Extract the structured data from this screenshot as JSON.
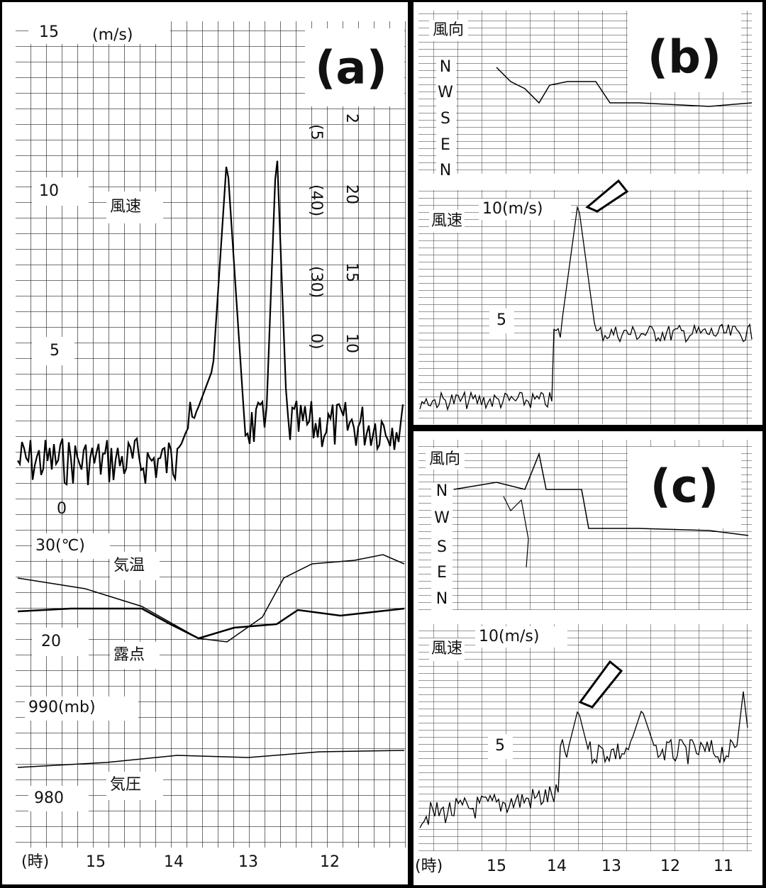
{
  "panel_a": {
    "label": "(a)",
    "wind_unit": "(m/s)",
    "wind_ticks": [
      "15",
      "10",
      "5",
      "0"
    ],
    "wind_title": "風速",
    "side_ticks": [
      "(5",
      "(40)",
      "(30)",
      "0)",
      "2",
      "20",
      "15",
      "10"
    ],
    "temp_ticks": [
      "30(℃)",
      "20"
    ],
    "temp_title": "気温",
    "dew_title": "露点",
    "pressure_ticks": [
      "990(mb)",
      "980"
    ],
    "pressure_title": "気圧",
    "time_unit": "(時)",
    "times": [
      "15",
      "14",
      "13",
      "12"
    ]
  },
  "panel_b": {
    "label": "(b)",
    "dir_title": "風向",
    "dirs": [
      "N",
      "W",
      "S",
      "E",
      "N"
    ],
    "wind_title": "風速",
    "wind_ticks": [
      "10(m/s)",
      "5"
    ]
  },
  "panel_c": {
    "label": "(c)",
    "dir_title": "風向",
    "dirs": [
      "N",
      "W",
      "S",
      "E",
      "N"
    ],
    "wind_title": "風速",
    "wind_ticks": [
      "10(m/s)",
      "5"
    ],
    "time_unit": "(時)",
    "times": [
      "15",
      "14",
      "13",
      "12",
      "11"
    ]
  }
}
